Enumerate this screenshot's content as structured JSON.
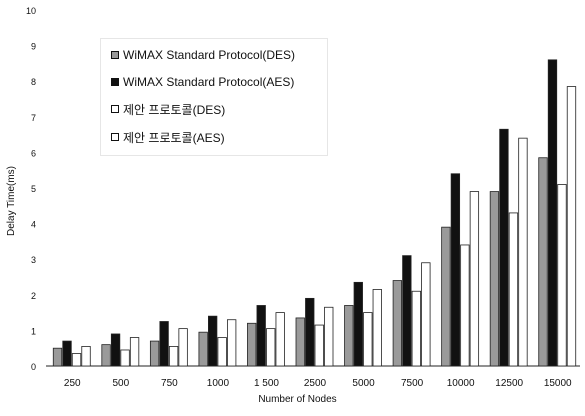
{
  "chart_data": {
    "type": "bar",
    "xlabel": "Number of Nodes",
    "ylabel": "Delay Time(ms)",
    "ylim": [
      0,
      10
    ],
    "yticks": [
      0,
      1,
      2,
      3,
      4,
      5,
      6,
      7,
      8,
      9,
      10
    ],
    "categories": [
      "250",
      "500",
      "750",
      "1000",
      "1 500",
      "2500",
      "5000",
      "7500",
      "10000",
      "12500",
      "15000"
    ],
    "series": [
      {
        "name": "WiMAX Standard Protocol(DES)",
        "color": "#9a9a9a",
        "values": [
          0.5,
          0.6,
          0.7,
          0.95,
          1.2,
          1.35,
          1.7,
          2.4,
          3.9,
          4.9,
          5.85
        ]
      },
      {
        "name": "WiMAX Standard Protocol(AES)",
        "color": "#111111",
        "values": [
          0.7,
          0.9,
          1.25,
          1.4,
          1.7,
          1.9,
          2.35,
          3.1,
          5.4,
          6.65,
          8.6
        ]
      },
      {
        "name": "제안 프로토콜(DES)",
        "color": "#ffffff",
        "values": [
          0.35,
          0.45,
          0.55,
          0.8,
          1.05,
          1.15,
          1.5,
          2.1,
          3.4,
          4.3,
          5.1
        ]
      },
      {
        "name": "제안 프로토콜(AES)",
        "color": "#ffffff",
        "values": [
          0.55,
          0.8,
          1.05,
          1.3,
          1.5,
          1.65,
          2.15,
          2.9,
          4.9,
          6.4,
          7.85
        ]
      }
    ],
    "legend_position": "top-left",
    "grid": false
  }
}
